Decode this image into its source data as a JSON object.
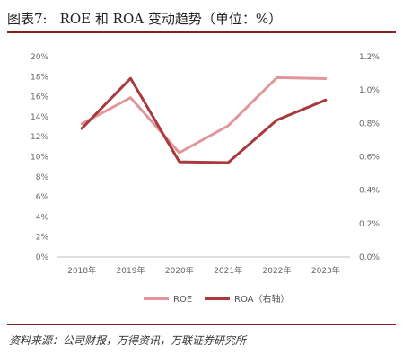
{
  "header": {
    "figure_no": "图表7:",
    "title": "ROE 和 ROA 变动趋势（单位：%）"
  },
  "source": "资料来源：公司财报，万得资讯，万联证券研究所",
  "colors": {
    "roe": "#e0969b",
    "roa": "#a83a3d",
    "rule": "#8a1f1f",
    "grid": "#d9d9d9"
  },
  "chart_data": {
    "type": "line",
    "categories": [
      "2018年",
      "2019年",
      "2020年",
      "2021年",
      "2022年",
      "2023年"
    ],
    "series": [
      {
        "name": "ROE",
        "axis": "left",
        "values": [
          13.3,
          15.9,
          10.4,
          13.1,
          17.9,
          17.8
        ]
      },
      {
        "name": "ROA（右轴）",
        "axis": "right",
        "values": [
          0.77,
          1.07,
          0.57,
          0.565,
          0.82,
          0.94
        ]
      }
    ],
    "y_left": {
      "min": 0,
      "max": 20,
      "ticks": [
        "0%",
        "2%",
        "4%",
        "6%",
        "8%",
        "10%",
        "12%",
        "14%",
        "16%",
        "18%",
        "20%"
      ]
    },
    "y_right": {
      "min": 0,
      "max": 1.2,
      "ticks": [
        "0.0%",
        "0.2%",
        "0.4%",
        "0.6%",
        "0.8%",
        "1.0%",
        "1.2%"
      ]
    },
    "legend_position": "bottom-center",
    "grid": false
  }
}
